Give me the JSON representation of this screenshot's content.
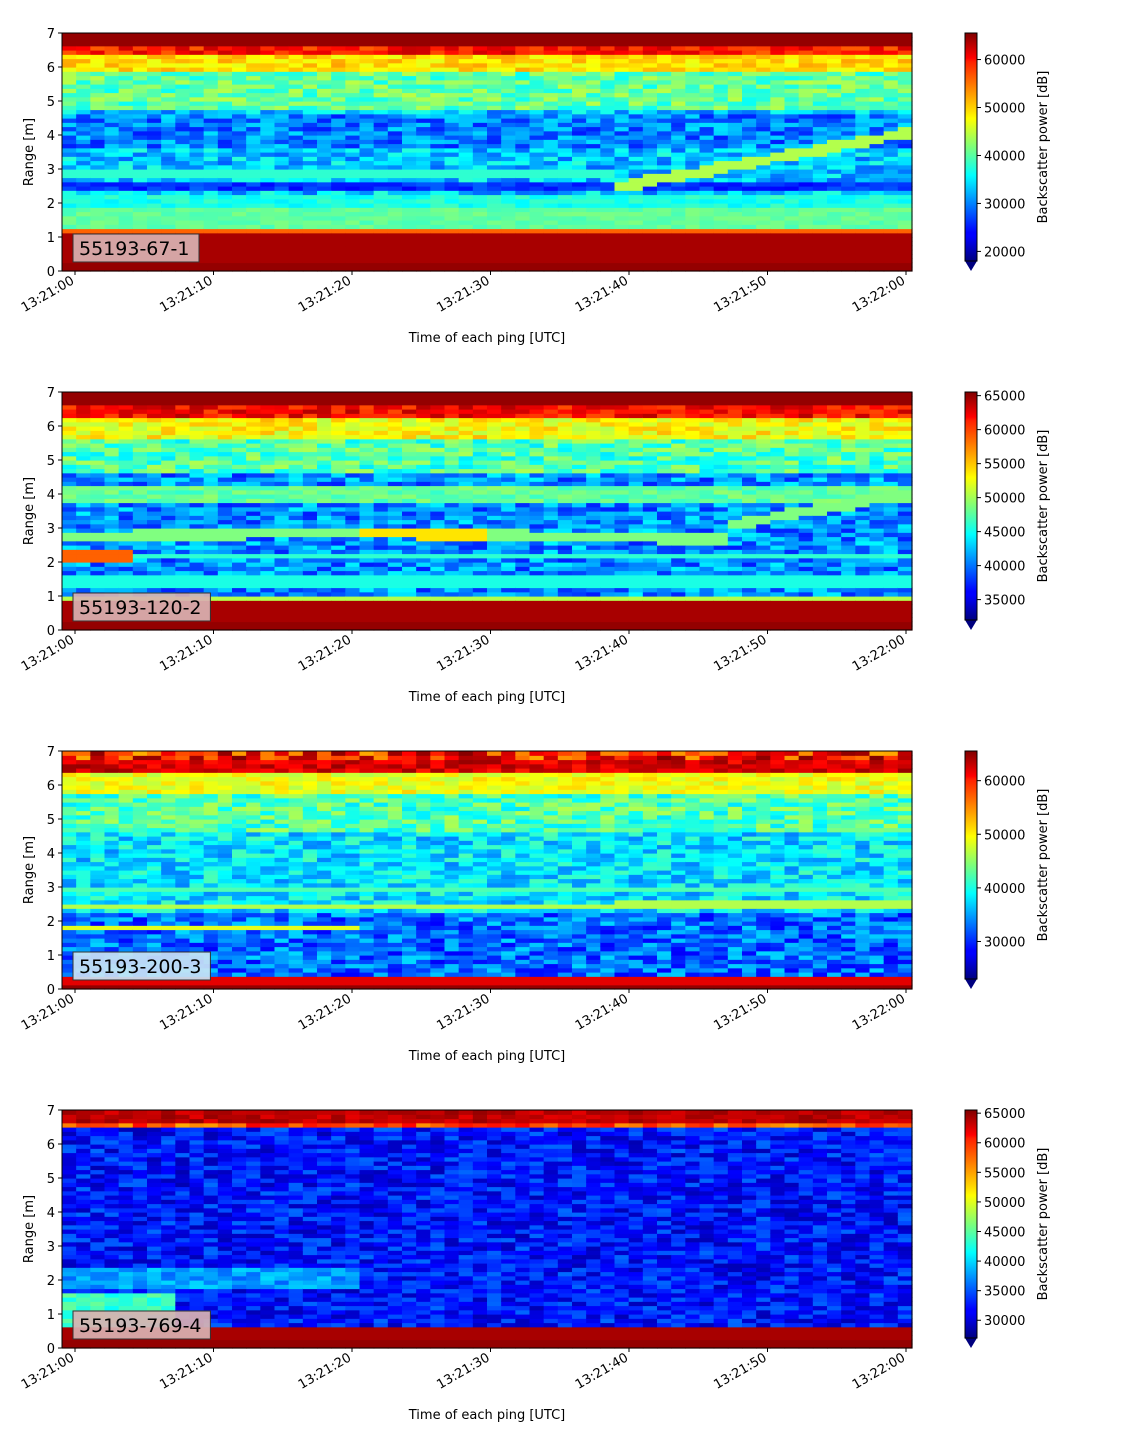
{
  "chart_data": [
    {
      "type": "heatmap",
      "label": "55193-67-1",
      "xlabel": "Time of each ping [UTC]",
      "ylabel": "Range [m]",
      "colorbar_label": "Backscatter power [dB]",
      "colormap": "jet",
      "x_ticks": [
        "13:21:00",
        "13:21:10",
        "13:21:20",
        "13:21:30",
        "13:21:40",
        "13:21:50",
        "13:22:00"
      ],
      "y_ticks": [
        0,
        1,
        2,
        3,
        4,
        5,
        6,
        7
      ],
      "ylim": [
        0,
        7
      ],
      "clim": [
        18000,
        65535
      ],
      "colorbar_ticks": [
        20000,
        30000,
        40000,
        50000,
        60000
      ],
      "label_box_color": "#d9b2b2"
    },
    {
      "type": "heatmap",
      "label": "55193-120-2",
      "xlabel": "Time of each ping [UTC]",
      "ylabel": "Range [m]",
      "colorbar_label": "Backscatter power [dB]",
      "colormap": "jet",
      "x_ticks": [
        "13:21:00",
        "13:21:10",
        "13:21:20",
        "13:21:30",
        "13:21:40",
        "13:21:50",
        "13:22:00"
      ],
      "y_ticks": [
        0,
        1,
        2,
        3,
        4,
        5,
        6,
        7
      ],
      "ylim": [
        0,
        7
      ],
      "clim": [
        32000,
        65535
      ],
      "colorbar_ticks": [
        35000,
        40000,
        45000,
        50000,
        55000,
        60000,
        65000
      ],
      "label_box_color": "#d9b2b2"
    },
    {
      "type": "heatmap",
      "label": "55193-200-3",
      "xlabel": "Time of each ping [UTC]",
      "ylabel": "Range [m]",
      "colorbar_label": "Backscatter power [dB]",
      "colormap": "jet",
      "x_ticks": [
        "13:21:00",
        "13:21:10",
        "13:21:20",
        "13:21:30",
        "13:21:40",
        "13:21:50",
        "13:22:00"
      ],
      "y_ticks": [
        0,
        1,
        2,
        3,
        4,
        5,
        6,
        7
      ],
      "ylim": [
        0,
        7
      ],
      "clim": [
        23000,
        65535
      ],
      "colorbar_ticks": [
        30000,
        40000,
        50000,
        60000
      ],
      "label_box_color": "#c8e4f5"
    },
    {
      "type": "heatmap",
      "label": "55193-769-4",
      "xlabel": "Time of each ping [UTC]",
      "ylabel": "Range [m]",
      "colorbar_label": "Backscatter power [dB]",
      "colormap": "jet",
      "x_ticks": [
        "13:21:00",
        "13:21:10",
        "13:21:20",
        "13:21:30",
        "13:21:40",
        "13:21:50",
        "13:22:00"
      ],
      "y_ticks": [
        0,
        1,
        2,
        3,
        4,
        5,
        6,
        7
      ],
      "ylim": [
        0,
        7
      ],
      "clim": [
        27000,
        65535
      ],
      "colorbar_ticks": [
        30000,
        35000,
        40000,
        45000,
        50000,
        55000,
        60000,
        65000
      ],
      "label_box_color": "#d9b2b2"
    }
  ]
}
